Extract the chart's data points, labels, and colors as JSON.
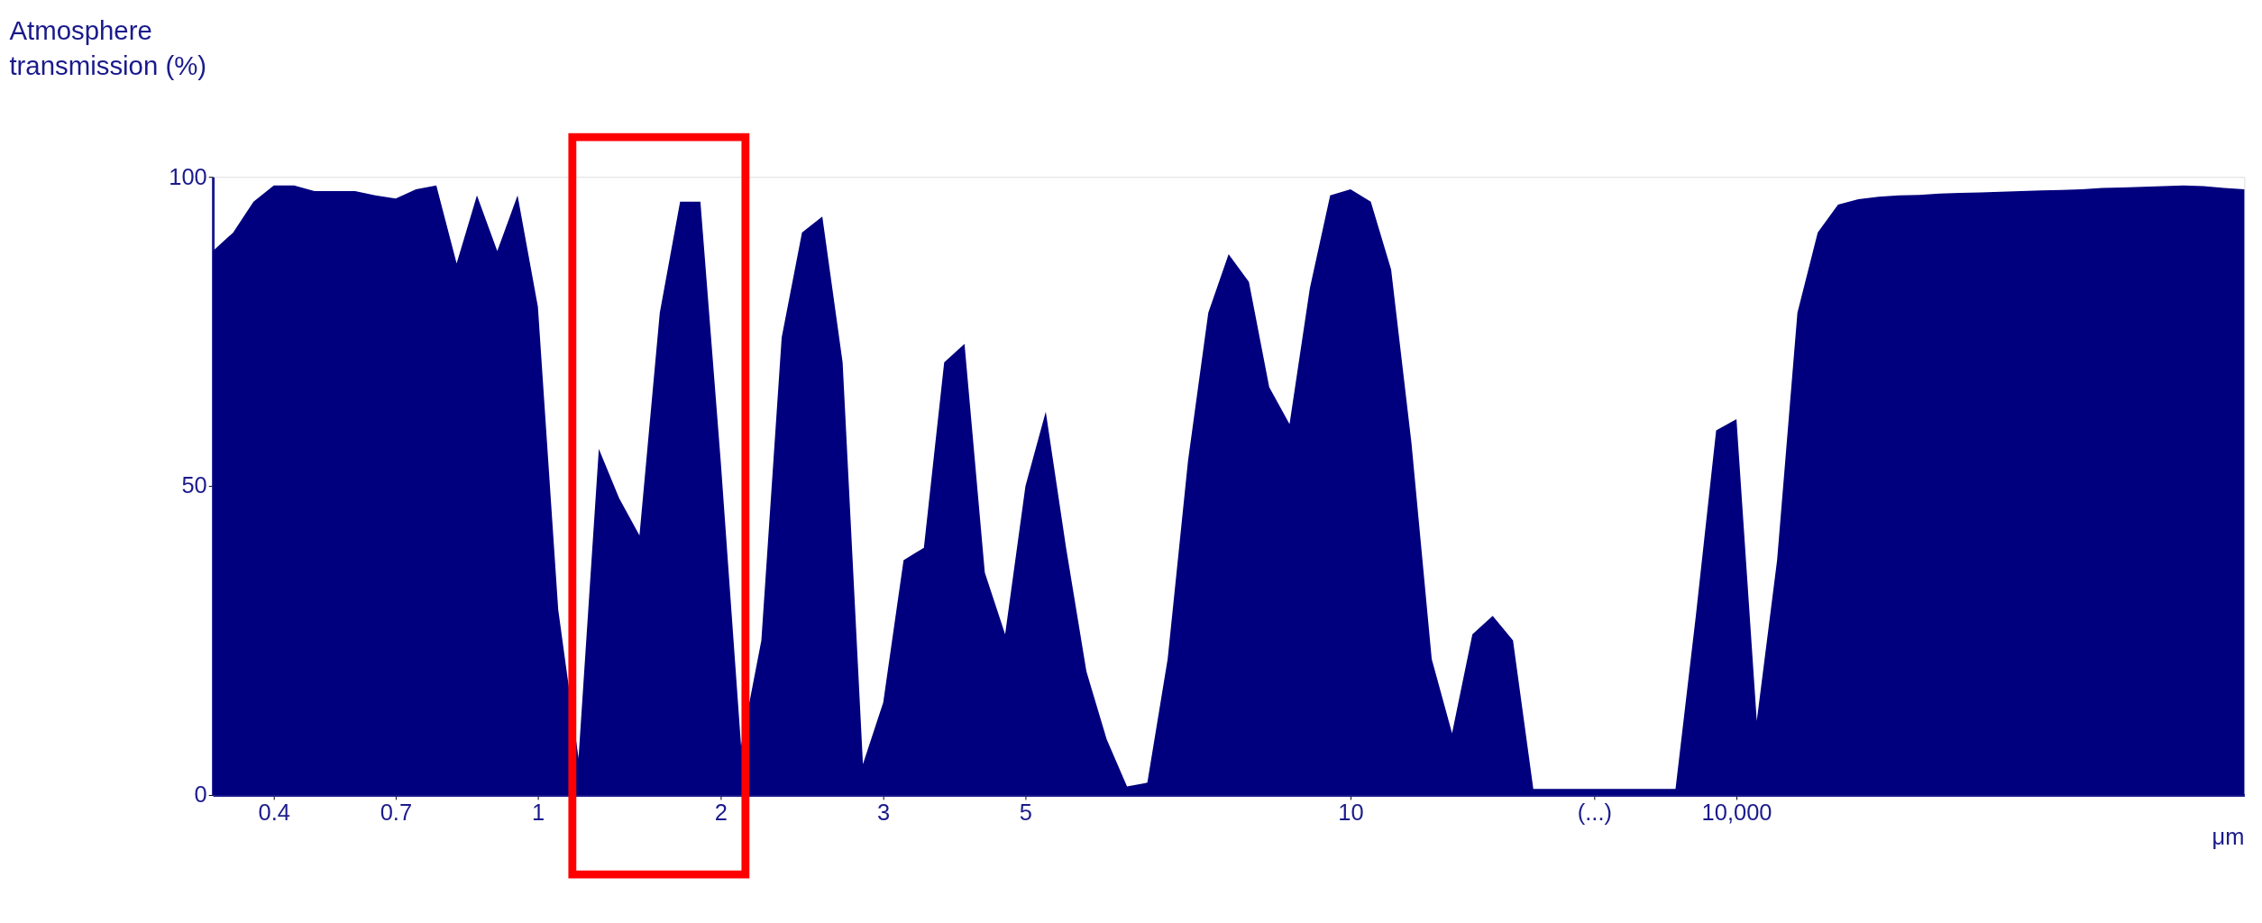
{
  "chart_data": {
    "type": "area",
    "ylabel": "Atmosphere transmission (%)",
    "xlabel": "μm",
    "categories": [
      null,
      null,
      null,
      "0.4",
      null,
      null,
      null,
      null,
      null,
      "0.7",
      null,
      null,
      null,
      null,
      null,
      null,
      "1",
      null,
      null,
      null,
      null,
      null,
      null,
      null,
      null,
      "2",
      null,
      null,
      null,
      null,
      null,
      null,
      null,
      "3",
      null,
      null,
      null,
      null,
      null,
      null,
      "5",
      null,
      null,
      null,
      null,
      null,
      null,
      null,
      null,
      null,
      null,
      null,
      null,
      null,
      null,
      null,
      "10",
      null,
      null,
      null,
      null,
      null,
      null,
      null,
      null,
      null,
      null,
      null,
      "(...)",
      null,
      null,
      null,
      null,
      null,
      null,
      "10,000",
      null,
      null,
      null,
      null,
      null,
      null,
      null,
      null,
      null,
      null,
      null,
      null,
      null,
      null,
      null,
      null,
      null,
      null,
      null,
      null,
      null,
      null,
      null,
      null,
      null
    ],
    "series": [
      {
        "color": "#00007f",
        "values": [
          88,
          91,
          96,
          98.6,
          98.6,
          97.7,
          97.7,
          97.7,
          97,
          96.5,
          98,
          98.6,
          86,
          97,
          88,
          97,
          79,
          30,
          6,
          56,
          48,
          42,
          78,
          96,
          96,
          54,
          8,
          25,
          74,
          91,
          93.6,
          70,
          5,
          15,
          38,
          40,
          70,
          73,
          36,
          26,
          50,
          62,
          40,
          20,
          9,
          1.4,
          2,
          22,
          54,
          78,
          87.5,
          83,
          66,
          60,
          82,
          97,
          98,
          96,
          85,
          57,
          22,
          10,
          26,
          29,
          25,
          1,
          1,
          1,
          1,
          1,
          1,
          1,
          1,
          29,
          59,
          60.8,
          12,
          38,
          78,
          91,
          95.5,
          96.4,
          96.8,
          97,
          97.1,
          97.3,
          97.4,
          97.5,
          97.6,
          97.7,
          97.8,
          97.9,
          98,
          98.2,
          98.3,
          98.4,
          98.5,
          98.6,
          98.5,
          98.2,
          98
        ]
      }
    ],
    "ylim": [
      0,
      100
    ],
    "yticks": [
      0,
      50,
      100
    ],
    "grid": false
  }
}
